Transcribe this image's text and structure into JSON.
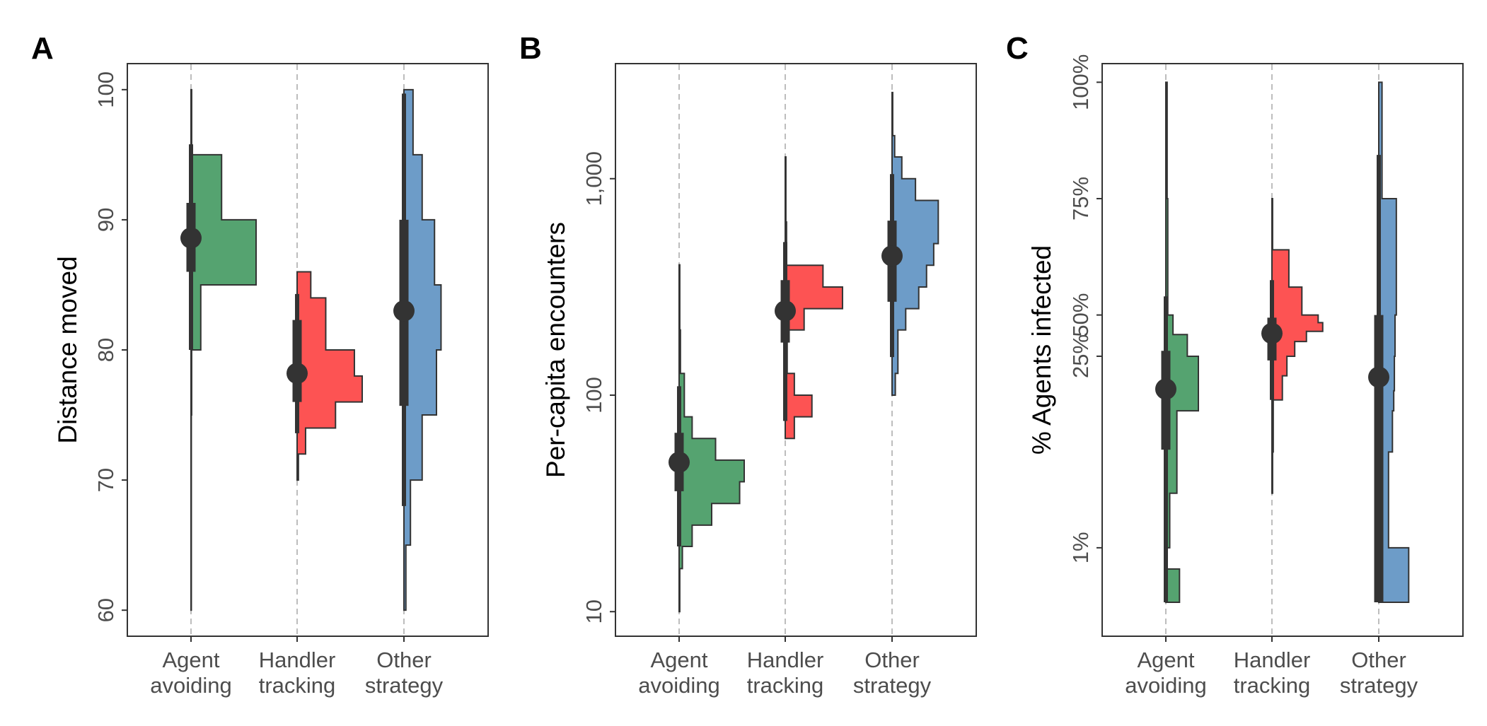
{
  "chart_data": [
    {
      "type": "histogram-violin",
      "panel_label": "A",
      "title": "",
      "xlabel": "",
      "ylabel": "Distance moved",
      "ylim": [
        58,
        102
      ],
      "yscale": "linear",
      "yticks": [
        {
          "value": 60,
          "label": "60"
        },
        {
          "value": 70,
          "label": "70"
        },
        {
          "value": 80,
          "label": "80"
        },
        {
          "value": 90,
          "label": "90"
        },
        {
          "value": 100,
          "label": "100"
        }
      ],
      "categories": [
        [
          "Agent",
          "avoiding"
        ],
        [
          "Handler",
          "tracking"
        ],
        [
          "Other",
          "strategy"
        ]
      ],
      "grid": "vertical dashed at categories",
      "series": [
        {
          "color": "#55a370",
          "histogram": [
            [
              60,
              75,
              0.005
            ],
            [
              75,
              80,
              0.01
            ],
            [
              80,
              85,
              0.15
            ],
            [
              85,
              90,
              1.0
            ],
            [
              90,
              95,
              0.47
            ],
            [
              95,
              100,
              0.01
            ]
          ],
          "median": 88.6,
          "inner_interval": [
            86.0,
            91.3
          ],
          "outer_interval": [
            80.0,
            95.8
          ]
        },
        {
          "color": "#fd5353",
          "histogram": [
            [
              70,
              72,
              0.02
            ],
            [
              72,
              74,
              0.13
            ],
            [
              74,
              76,
              0.59
            ],
            [
              76,
              78,
              1.0
            ],
            [
              78,
              80,
              0.88
            ],
            [
              80,
              84,
              0.44
            ],
            [
              84,
              86,
              0.21
            ]
          ],
          "median": 78.2,
          "inner_interval": [
            76.0,
            82.3
          ],
          "outer_interval": [
            73.6,
            84.3
          ]
        },
        {
          "color": "#6d9cc8",
          "histogram": [
            [
              60,
              65,
              0.03
            ],
            [
              65,
              70,
              0.1
            ],
            [
              70,
              75,
              0.28
            ],
            [
              75,
              80,
              0.5
            ],
            [
              80,
              85,
              0.57
            ],
            [
              85,
              90,
              0.47
            ],
            [
              90,
              95,
              0.28
            ],
            [
              95,
              100,
              0.14
            ]
          ],
          "median": 83.0,
          "inner_interval": [
            75.7,
            90.0
          ],
          "outer_interval": [
            68.0,
            99.7
          ]
        }
      ]
    },
    {
      "type": "histogram-violin",
      "panel_label": "B",
      "title": "",
      "xlabel": "",
      "ylabel": "Per-capita encounters",
      "ylim": [
        7.7,
        3400
      ],
      "yscale": "log10",
      "yticks": [
        {
          "value": 10,
          "label": "10"
        },
        {
          "value": 100,
          "label": "100"
        },
        {
          "value": 1000,
          "label": "1,000"
        }
      ],
      "categories": [
        [
          "Agent",
          "avoiding"
        ],
        [
          "Handler",
          "tracking"
        ],
        [
          "Other",
          "strategy"
        ]
      ],
      "grid": "vertical dashed at categories",
      "series": [
        {
          "color": "#55a370",
          "histogram": [
            [
              10,
              15.8,
              0.01
            ],
            [
              15.8,
              20,
              0.05
            ],
            [
              20,
              25.1,
              0.2
            ],
            [
              25.1,
              31.6,
              0.5
            ],
            [
              31.6,
              39.8,
              0.93
            ],
            [
              39.8,
              50.1,
              1.0
            ],
            [
              50.1,
              63.1,
              0.56
            ],
            [
              63.1,
              79.4,
              0.2
            ],
            [
              79.4,
              126,
              0.08
            ],
            [
              126,
              200,
              0.02
            ],
            [
              200,
              400,
              0.01
            ]
          ],
          "median": 49,
          "inner_interval": [
            36,
            67
          ],
          "outer_interval": [
            20,
            110
          ]
        },
        {
          "color": "#fd5353",
          "histogram": [
            [
              63.1,
              79.4,
              0.14
            ],
            [
              79.4,
              100,
              0.41
            ],
            [
              100,
              126,
              0.14
            ],
            [
              126,
              200,
              0.03
            ],
            [
              200,
              251,
              0.29
            ],
            [
              251,
              316,
              0.88
            ],
            [
              316,
              398,
              0.58
            ],
            [
              398,
              631,
              0.02
            ],
            [
              631,
              1260,
              0.01
            ]
          ],
          "median": 245,
          "inner_interval": [
            175,
            340
          ],
          "outer_interval": [
            76,
            510
          ]
        },
        {
          "color": "#6d9cc8",
          "histogram": [
            [
              100,
              126,
              0.05
            ],
            [
              126,
              200,
              0.09
            ],
            [
              200,
              251,
              0.21
            ],
            [
              251,
              316,
              0.41
            ],
            [
              316,
              398,
              0.53
            ],
            [
              398,
              501,
              0.64
            ],
            [
              501,
              631,
              0.71
            ],
            [
              631,
              794,
              0.71
            ],
            [
              794,
              1000,
              0.36
            ],
            [
              1000,
              1260,
              0.15
            ],
            [
              1260,
              1580,
              0.04
            ],
            [
              1580,
              2500,
              0.01
            ]
          ],
          "median": 440,
          "inner_interval": [
            270,
            640
          ],
          "outer_interval": [
            150,
            1050
          ]
        }
      ]
    },
    {
      "type": "histogram-violin",
      "panel_label": "C",
      "title": "",
      "xlabel": "",
      "ylabel": "% Agents infected",
      "ylim": [
        -0.19,
        1.04
      ],
      "yscale": "transformed",
      "ytransform": "boundaries 0, 0.5, 1 at 1%, 50%, 100%; the 1% to 50% stretch drawn on a log scale, linear above 50%",
      "yticks": [
        {
          "value": 1,
          "label": "1%"
        },
        {
          "value": 25,
          "label": "25%"
        },
        {
          "value": 50,
          "label": "50%"
        },
        {
          "value": 75,
          "label": "75%"
        },
        {
          "value": 100,
          "label": "100%"
        }
      ],
      "categories": [
        [
          "Agent",
          "avoiding"
        ],
        [
          "Handler",
          "tracking"
        ],
        [
          "Other",
          "strategy"
        ]
      ],
      "grid": "vertical dashed at categories",
      "series": [
        {
          "color": "#55a370",
          "histogram": [
            [
              0.4,
              0.7,
              0.21
            ],
            [
              1,
              2.5,
              0.06
            ],
            [
              2.5,
              10,
              0.17
            ],
            [
              10,
              25,
              0.5
            ],
            [
              25,
              36,
              0.33
            ],
            [
              36,
              50,
              0.11
            ],
            [
              50,
              75,
              0.03
            ],
            [
              75,
              100,
              0.02
            ]
          ],
          "median": 14.4,
          "inner_interval": [
            5.2,
            27.4
          ],
          "outer_interval": [
            0.4,
            54.0
          ]
        },
        {
          "color": "#fd5353",
          "histogram": [
            [
              2.5,
              5,
              0.01
            ],
            [
              5,
              12,
              0.02
            ],
            [
              12,
              18,
              0.16
            ],
            [
              18,
              25,
              0.23
            ],
            [
              25,
              32,
              0.35
            ],
            [
              32,
              38,
              0.53
            ],
            [
              38,
              44,
              0.78
            ],
            [
              44,
              50,
              0.71
            ],
            [
              50,
              56,
              0.46
            ],
            [
              56,
              64,
              0.26
            ],
            [
              64,
              75,
              0.01
            ]
          ],
          "median": 36.7,
          "inner_interval": [
            23.3,
            47.8
          ],
          "outer_interval": [
            12.0,
            57.5
          ]
        },
        {
          "color": "#6d9cc8",
          "histogram": [
            [
              0.4,
              1,
              0.46
            ],
            [
              1,
              5,
              0.15
            ],
            [
              5,
              10,
              0.21
            ],
            [
              10,
              14,
              0.23
            ],
            [
              14,
              25,
              0.24
            ],
            [
              25,
              50,
              0.25
            ],
            [
              50,
              75,
              0.27
            ],
            [
              75,
              100,
              0.05
            ]
          ],
          "median": 17.6,
          "inner_interval": [
            0.4,
            50.0
          ],
          "outer_interval": [
            0.4,
            84.4
          ]
        }
      ]
    }
  ]
}
